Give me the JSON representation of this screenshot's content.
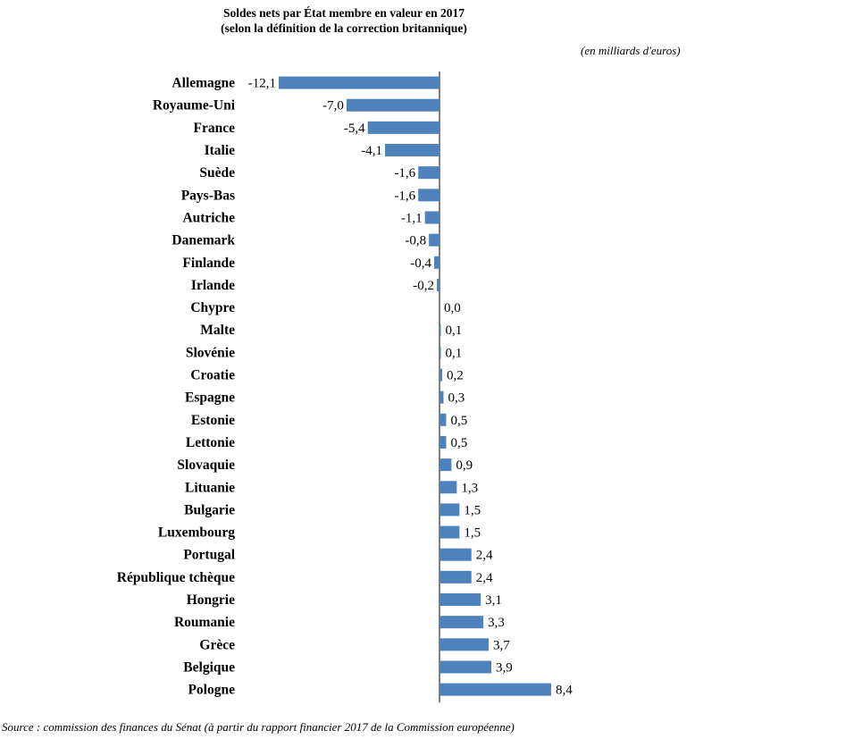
{
  "title": "Soldes nets par État membre en valeur en 2017",
  "subtitle": "(selon la définition de la correction britannique)",
  "units_note": "(en milliards d'euros)",
  "source": "Source : commission des finances du Sénat (à partir du rapport financier 2017 de la Commission européenne)",
  "bar_color": "#4f81bd",
  "chart_data": {
    "type": "bar",
    "orientation": "horizontal",
    "title": "Soldes nets par État membre en valeur en 2017",
    "subtitle": "(selon la définition de la correction britannique)",
    "categories": [
      "Allemagne",
      "Royaume-Uni",
      "France",
      "Italie",
      "Suède",
      "Pays-Bas",
      "Autriche",
      "Danemark",
      "Finlande",
      "Irlande",
      "Chypre",
      "Malte",
      "Slovénie",
      "Croatie",
      "Espagne",
      "Estonie",
      "Lettonie",
      "Slovaquie",
      "Lituanie",
      "Bulgarie",
      "Luxembourg",
      "Portugal",
      "République tchèque",
      "Hongrie",
      "Roumanie",
      "Grèce",
      "Belgique",
      "Pologne"
    ],
    "values": [
      -12.1,
      -7.0,
      -5.4,
      -4.1,
      -1.6,
      -1.6,
      -1.1,
      -0.8,
      -0.4,
      -0.2,
      0.0,
      0.1,
      0.1,
      0.2,
      0.3,
      0.5,
      0.5,
      0.9,
      1.3,
      1.5,
      1.5,
      2.4,
      2.4,
      3.1,
      3.3,
      3.7,
      3.9,
      8.4
    ],
    "value_labels": [
      "-12,1",
      "-7,0",
      "-5,4",
      "-4,1",
      "-1,6",
      "-1,6",
      "-1,1",
      "-0,8",
      "-0,4",
      "-0,2",
      "0,0",
      "0,1",
      "0,1",
      "0,2",
      "0,3",
      "0,5",
      "0,5",
      "0,9",
      "1,3",
      "1,5",
      "1,5",
      "2,4",
      "2,4",
      "3,1",
      "3,3",
      "3,7",
      "3,9",
      "8,4"
    ],
    "xlabel": "",
    "ylabel": "",
    "grid": false,
    "legend": "none"
  }
}
